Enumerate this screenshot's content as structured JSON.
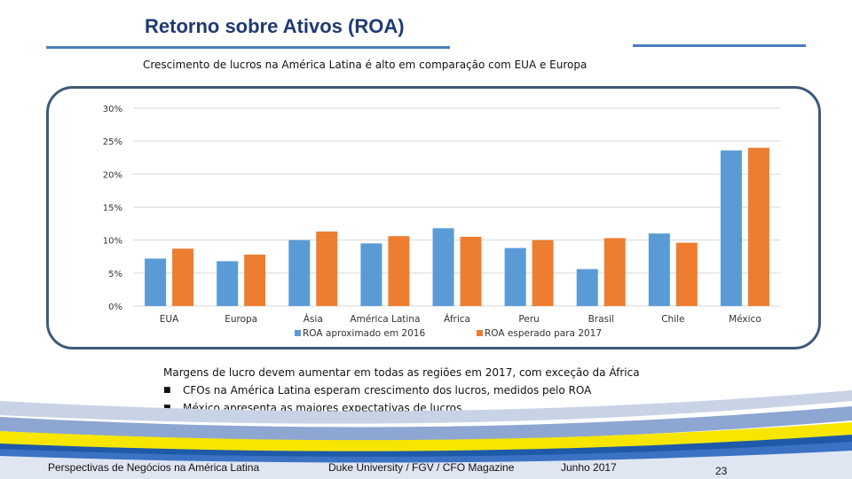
{
  "slide": {
    "title": "Retorno sobre Ativos (ROA)",
    "subtitle": "Crescimento de lucros na América Latina é alto em comparação com EUA e Europa",
    "notes": {
      "heading": "Margens de lucro devem aumentar em todas as regiões em 2017, com exceção da África",
      "bullets": [
        "CFOs na América Latina esperam crescimento dos lucros, medidos pelo ROA",
        "México apresenta as maiores expectativas de lucros"
      ]
    },
    "footer": {
      "left": "Perspectivas de Negócios na América Latina",
      "center": "Duke University / FGV / CFO Magazine",
      "date": "Junho 2017",
      "page": "23"
    }
  },
  "colors": {
    "series1": "#5b9bd5",
    "series2": "#ed7d31",
    "title": "#1f3a73"
  },
  "chart_data": {
    "type": "bar",
    "title": "",
    "categories": [
      "EUA",
      "Europa",
      "Ásia",
      "América Latina",
      "África",
      "Peru",
      "Brasil",
      "Chile",
      "México"
    ],
    "series": [
      {
        "name": "ROA aproximado em 2016",
        "values": [
          7.2,
          6.8,
          10.0,
          9.5,
          11.8,
          8.8,
          5.6,
          11.0,
          23.6
        ]
      },
      {
        "name": "ROA esperado para 2017",
        "values": [
          8.7,
          7.8,
          11.3,
          10.6,
          10.5,
          10.0,
          10.3,
          9.6,
          24.0
        ]
      }
    ],
    "yticks": [
      "0%",
      "5%",
      "10%",
      "15%",
      "20%",
      "25%",
      "30%"
    ],
    "ylim": [
      0,
      30
    ],
    "legend_position": "bottom"
  }
}
